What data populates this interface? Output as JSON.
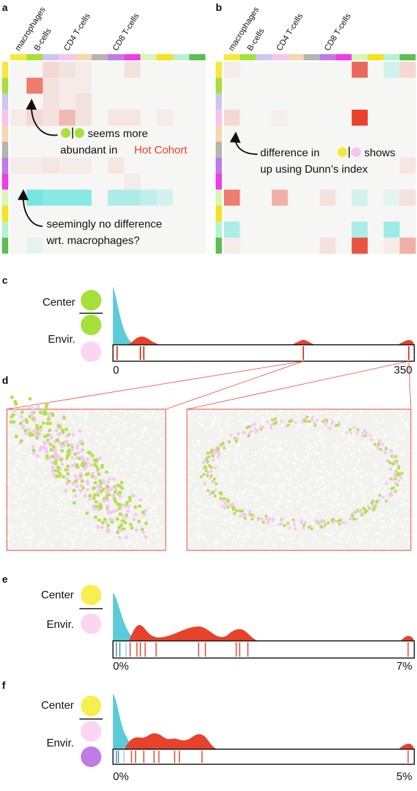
{
  "panels": {
    "a": {
      "label": "a",
      "column_labels": [
        "macrophages",
        "B-cells",
        "CD4 T-cells",
        "CD8 T-cells"
      ],
      "annotations": [
        "seems more",
        "abundant in",
        "Hot Cohort",
        "seemingly no difference",
        "wrt. macrophages?"
      ],
      "heatmap": [
        [
          0,
          0,
          0.15,
          0.1,
          0.05,
          0,
          0,
          0.1,
          0,
          0,
          0,
          0
        ],
        [
          0,
          0.6,
          0.1,
          0.05,
          0.05,
          0,
          0,
          0,
          0,
          0,
          0,
          0
        ],
        [
          0,
          0,
          0.1,
          0.05,
          0.1,
          0,
          0,
          0,
          0,
          0,
          0,
          0
        ],
        [
          0.05,
          0.15,
          0.1,
          0.3,
          0.1,
          0,
          0.08,
          0.08,
          0,
          0.05,
          0,
          0
        ],
        [
          0,
          0,
          0,
          0,
          0,
          0,
          0,
          0,
          0,
          0,
          0,
          0
        ],
        [
          0,
          0,
          0,
          0,
          0,
          0,
          0,
          0,
          0,
          0,
          0,
          0
        ],
        [
          0.05,
          0.05,
          0.08,
          0.05,
          0.05,
          0,
          0.08,
          0,
          0,
          0,
          0,
          0
        ],
        [
          0,
          0,
          0,
          0,
          0,
          0,
          0,
          0.05,
          0,
          0,
          0,
          0
        ],
        [
          0,
          -0.35,
          -0.3,
          -0.3,
          -0.3,
          0,
          -0.2,
          -0.2,
          -0.15,
          -0.1,
          0,
          0
        ],
        [
          0,
          0,
          0,
          0,
          0,
          0,
          0,
          0,
          0,
          0,
          0,
          0
        ],
        [
          0,
          0,
          0,
          0,
          0,
          0,
          0,
          0,
          0,
          0,
          0,
          0
        ],
        [
          0,
          -0.05,
          0,
          0,
          0,
          0,
          0,
          0,
          0,
          0,
          0,
          0
        ]
      ]
    },
    "b": {
      "label": "b",
      "column_labels": [
        "macrophages",
        "B-cells",
        "CD4 T-cells",
        "CD8 T-cells"
      ],
      "annotations": [
        "difference in",
        "shows",
        "up using Dunn’s index"
      ],
      "heatmap": [
        [
          0.05,
          0,
          0,
          0,
          0,
          0,
          0,
          0,
          0.7,
          0,
          -0.1,
          0.15
        ],
        [
          0,
          0,
          0,
          0,
          0,
          0,
          0,
          0,
          0,
          0,
          0,
          0
        ],
        [
          0,
          0,
          0,
          0,
          0,
          0,
          0,
          0,
          0,
          0,
          0,
          0
        ],
        [
          0.15,
          0,
          0,
          0.03,
          0,
          0,
          0,
          0,
          0.9,
          0,
          0,
          0
        ],
        [
          0,
          0,
          0,
          0,
          0,
          0,
          0,
          0,
          0,
          0,
          0,
          0
        ],
        [
          0,
          0,
          0,
          0,
          0,
          0,
          0,
          0,
          0,
          0,
          0,
          0
        ],
        [
          0,
          0,
          0,
          0,
          0,
          0,
          0,
          0,
          0,
          0,
          0,
          0.08
        ],
        [
          0,
          0,
          0,
          0,
          0,
          0,
          0,
          0,
          0,
          0,
          0,
          0
        ],
        [
          0.6,
          0,
          0,
          0.35,
          0,
          0,
          0.1,
          0,
          -0.1,
          0,
          -0.05,
          0.1
        ],
        [
          0,
          0,
          0,
          0,
          0,
          0,
          0,
          0,
          0,
          0,
          0,
          0
        ],
        [
          -0.2,
          0,
          0,
          0,
          0,
          0,
          0,
          0,
          -0.2,
          0,
          -0.25,
          0
        ],
        [
          0.05,
          0,
          0,
          0,
          0,
          0,
          0.1,
          0,
          0.8,
          0,
          0.05,
          0.35
        ]
      ]
    },
    "c": {
      "label": "c",
      "legend": [
        "Center",
        "Envir."
      ],
      "ticks": [
        0,
        350
      ]
    },
    "d": {
      "label": "d"
    },
    "e": {
      "label": "e",
      "legend": [
        "Center",
        "Envir."
      ],
      "ticks": [
        {
          "value": 0,
          "label": "0%"
        },
        {
          "value": 7,
          "label": "7%"
        }
      ]
    },
    "f": {
      "label": "f",
      "legend": [
        "Center",
        "Envir."
      ],
      "ticks": [
        {
          "value": 0,
          "label": "0%"
        },
        {
          "value": 5,
          "label": "5%"
        }
      ]
    }
  },
  "cell_type_colors": [
    "#f5ea3c",
    "#a6e03a",
    "#cfc6ee",
    "#f7c4f0",
    "#f8d6ae",
    "#b5b5b0",
    "#c27ae6",
    "#f03ce6",
    "#d6f7b6",
    "#f7e21e",
    "#b6f2d0",
    "#5cbf52"
  ]
}
